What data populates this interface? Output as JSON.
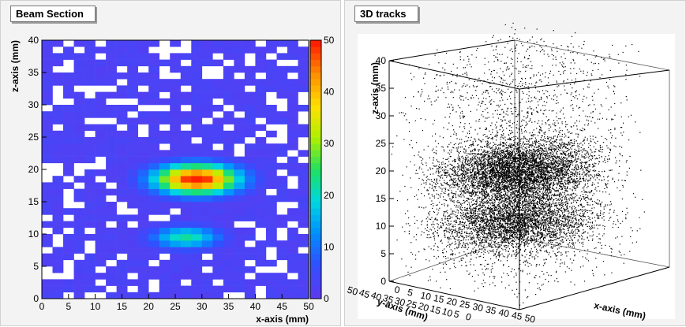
{
  "panels": {
    "left_title": "Beam Section",
    "right_title": "3D tracks"
  },
  "colors": {
    "panel_bg": "#f3f3f3",
    "plot_bg": "#ffffff",
    "low": "#5a3cf0",
    "palette": [
      "#5a3cf0",
      "#3050ff",
      "#0090ff",
      "#00d8e0",
      "#20e060",
      "#b0f000",
      "#ffe000",
      "#ff9000",
      "#ff2000"
    ]
  },
  "chart_data": [
    {
      "type": "heatmap",
      "title": "Beam Section",
      "xlabel": "x-axis (mm)",
      "ylabel": "z-axis (mm)",
      "xlim": [
        0,
        50
      ],
      "ylim": [
        0,
        40
      ],
      "x_ticks": [
        "0",
        "5",
        "10",
        "15",
        "20",
        "25",
        "30",
        "35",
        "40",
        "45",
        "50"
      ],
      "y_ticks": [
        "0",
        "5",
        "10",
        "15",
        "20",
        "25",
        "30",
        "35",
        "40"
      ],
      "colorbar": {
        "range": [
          0,
          50
        ],
        "ticks": [
          "0",
          "10",
          "20",
          "30",
          "40",
          "50"
        ]
      },
      "bins": {
        "x": 25,
        "y": 40
      },
      "clusters": [
        {
          "label": "upper cluster",
          "center": [
            29,
            18.5
          ],
          "peak": 52,
          "sigma": [
            5.5,
            1.6
          ]
        },
        {
          "label": "lower cluster",
          "center": [
            27,
            9.5
          ],
          "peak": 22,
          "sigma": [
            4.5,
            1.2
          ]
        }
      ],
      "background_level": 2
    },
    {
      "type": "scatter",
      "title": "3D tracks",
      "xlabel": "x-axis (mm)",
      "ylabel": "y-axis (mm)",
      "zlabel": "z-axis (mm)",
      "x_ticks": [
        "0",
        "5",
        "10",
        "15",
        "20",
        "25",
        "30",
        "35",
        "40",
        "45",
        "50"
      ],
      "y_ticks": [
        "50",
        "45",
        "40",
        "35",
        "30",
        "25",
        "20",
        "15",
        "10",
        "5",
        "0"
      ],
      "z_ticks": [
        "0",
        "5",
        "10",
        "15",
        "20",
        "25",
        "30",
        "35",
        "40"
      ],
      "xlim": [
        0,
        50
      ],
      "ylim": [
        0,
        50
      ],
      "zlim": [
        0,
        40
      ],
      "clusters": [
        {
          "label": "upper cluster",
          "z_center": 18.5,
          "z_sigma": 2.2
        },
        {
          "label": "lower cluster",
          "z_center": 9.5,
          "z_sigma": 1.8
        }
      ]
    }
  ]
}
